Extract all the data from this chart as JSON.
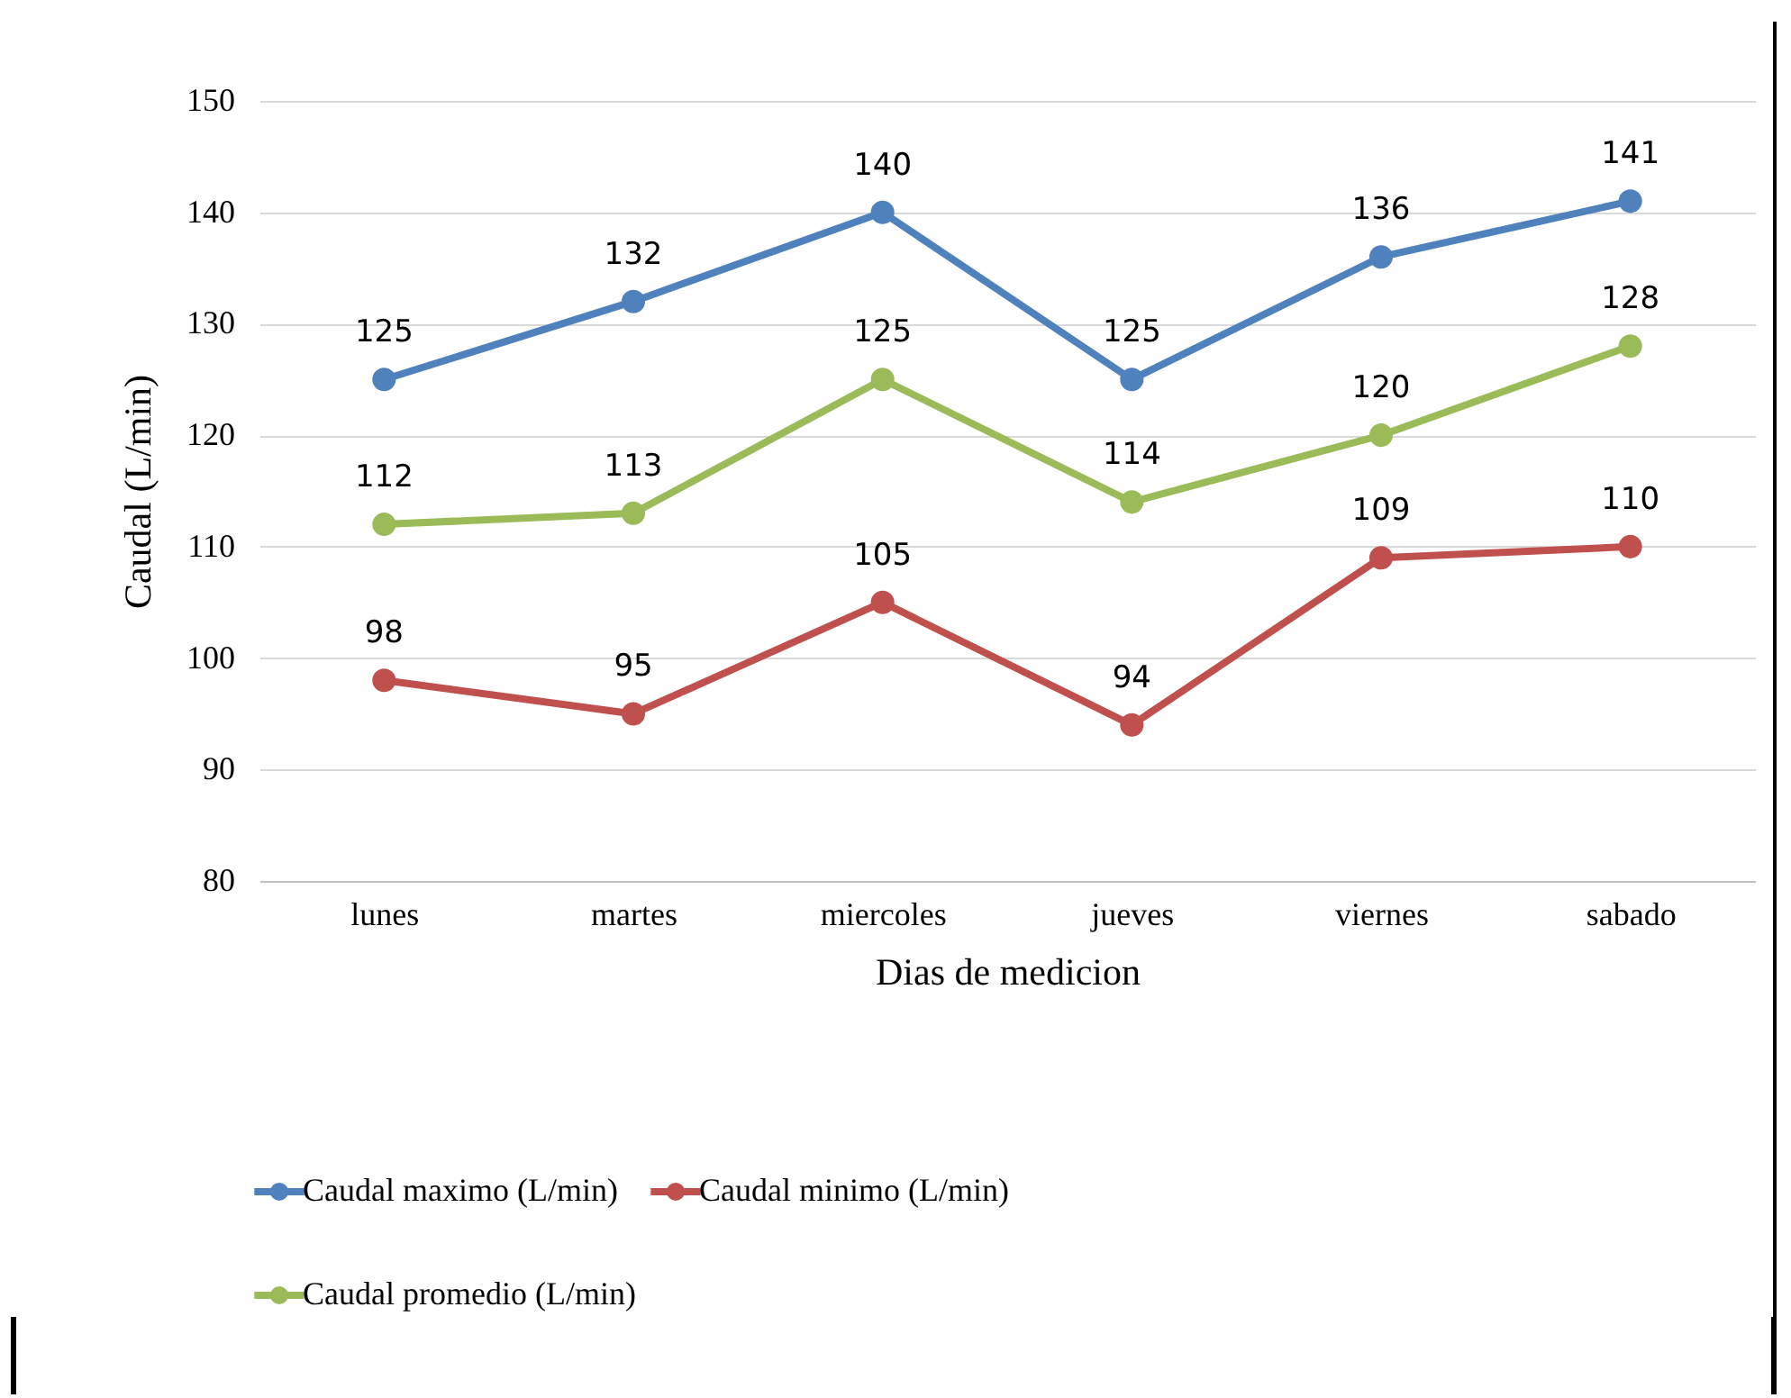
{
  "chart_data": {
    "type": "line",
    "xlabel": "Dias de medicion",
    "ylabel": "Caudal (L/min)",
    "categories": [
      "lunes",
      "martes",
      "miercoles",
      "jueves",
      "viernes",
      "sabado"
    ],
    "series": [
      {
        "name": "Caudal maximo (L/min)",
        "color": "#4f81bd",
        "values": [
          125,
          132,
          140,
          125,
          136,
          141
        ]
      },
      {
        "name": "Caudal minimo (L/min)",
        "color": "#c0504d",
        "values": [
          98,
          95,
          105,
          94,
          109,
          110
        ]
      },
      {
        "name": "Caudal promedio (L/min)",
        "color": "#9bbb59",
        "values": [
          112,
          113,
          125,
          114,
          120,
          128
        ]
      }
    ],
    "ylim": [
      80,
      150
    ],
    "yticks": [
      80,
      90,
      100,
      110,
      120,
      130,
      140,
      150
    ],
    "grid": "y",
    "legend": "bottom",
    "marker": "circle",
    "line_style": "solid",
    "data_labels": true
  }
}
